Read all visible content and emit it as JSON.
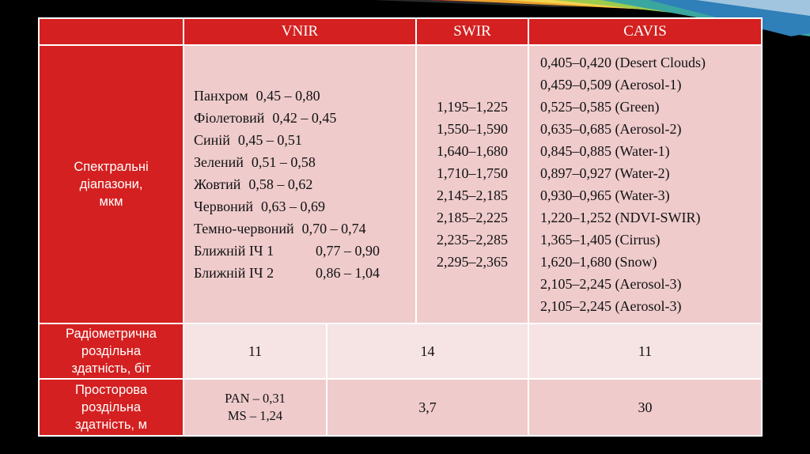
{
  "table": {
    "header": {
      "vnir": "VNIR",
      "swir": "SWIR",
      "cavis": "CAVIS"
    },
    "spectral": {
      "label": [
        "Спектральні",
        "діапазони,",
        "мкм"
      ],
      "vnir": [
        {
          "name": "Панхром",
          "range": "0,45 – 0,80"
        },
        {
          "name": "Фіолетовий",
          "range": "0,42 – 0,45"
        },
        {
          "name": "Синій",
          "range": "0,45 – 0,51"
        },
        {
          "name": "Зелений",
          "range": "0,51 – 0,58"
        },
        {
          "name": "Жовтий",
          "range": "0,58 – 0,62"
        },
        {
          "name": "Червоний",
          "range": "0,63 – 0,69"
        },
        {
          "name": "Темно-червоний",
          "range": "0,70 – 0,74"
        },
        {
          "name": "Ближній ІЧ 1",
          "range": "0,77 – 0,90"
        },
        {
          "name": "Ближній ІЧ 2",
          "range": "0,86 – 1,04"
        }
      ],
      "swir": [
        "1,195–1,225",
        "1,550–1,590",
        "1,640–1,680",
        "1,710–1,750",
        "2,145–2,185",
        "2,185–2,225",
        "2,235–2,285",
        "2,295–2,365"
      ],
      "cavis": [
        "0,405–0,420 (Desert Clouds)",
        "0,459–0,509 (Aerosol-1)",
        "0,525–0,585 (Green)",
        "0,635–0,685 (Aerosol-2)",
        "0,845–0,885 (Water-1)",
        "0,897–0,927 (Water-2)",
        "0,930–0,965 (Water-3)",
        "1,220–1,252 (NDVI-SWIR)",
        "1,365–1,405 (Cirrus)",
        "1,620–1,680 (Snow)",
        "2,105–2,245 (Aerosol-3)",
        "2,105–2,245 (Aerosol-3)"
      ]
    },
    "radiometric": {
      "label": [
        "Радіометрична",
        "роздільна",
        "здатність, біт"
      ],
      "vnir": "11",
      "swir": "14",
      "cavis": "11"
    },
    "spatial": {
      "label": [
        "Просторова",
        "роздільна",
        "здатність, м"
      ],
      "vnir": [
        "PAN – 0,31",
        "MS – 1,24"
      ],
      "swir": "3,7",
      "cavis": "30"
    }
  },
  "colors": {
    "header_red": "#d42020",
    "cell_pink": "#efcbcc",
    "cell_light_pink": "#f6e3e3",
    "background": "#000000"
  }
}
